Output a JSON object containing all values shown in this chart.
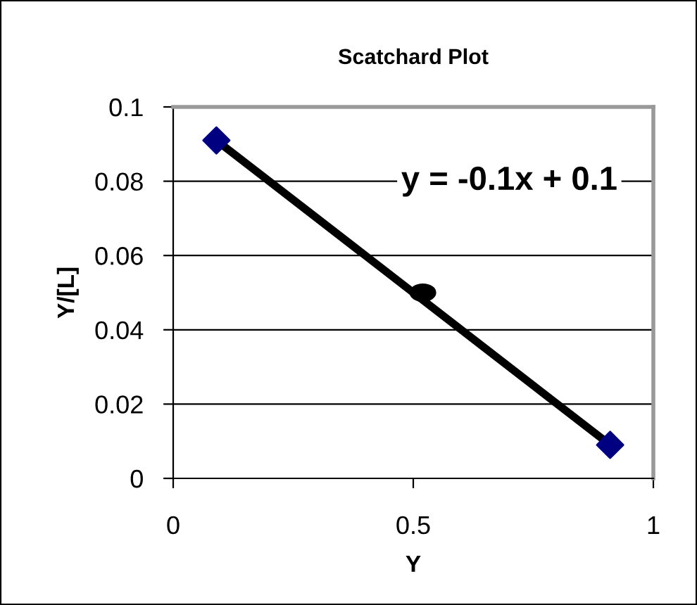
{
  "chart_data": {
    "type": "scatter",
    "title": "Scatchard Plot",
    "xlabel": "Y",
    "ylabel": "Y/[L]",
    "series": [
      {
        "color": "#000080",
        "marker": "diamond",
        "x": [
          0.09,
          0.91
        ],
        "values": [
          0.091,
          0.009
        ]
      },
      {
        "type": "line",
        "color": "#000000",
        "marker": "none",
        "line_style": "solid",
        "x": [
          0.09,
          0.91
        ],
        "values": [
          0.091,
          0.009
        ]
      },
      {
        "color": "#000000",
        "marker": "circle",
        "x": [
          0.52
        ],
        "values": [
          0.05
        ]
      }
    ],
    "annotations": [
      "y = -0.1x + 0.1"
    ],
    "xlim": [
      0,
      1
    ],
    "xticks": [
      0,
      0.5,
      1
    ],
    "ylim": [
      0,
      0.1
    ],
    "yticks": [
      0,
      0.02,
      0.04,
      0.06,
      0.08,
      0.1
    ],
    "grid": "y",
    "legend": false
  }
}
